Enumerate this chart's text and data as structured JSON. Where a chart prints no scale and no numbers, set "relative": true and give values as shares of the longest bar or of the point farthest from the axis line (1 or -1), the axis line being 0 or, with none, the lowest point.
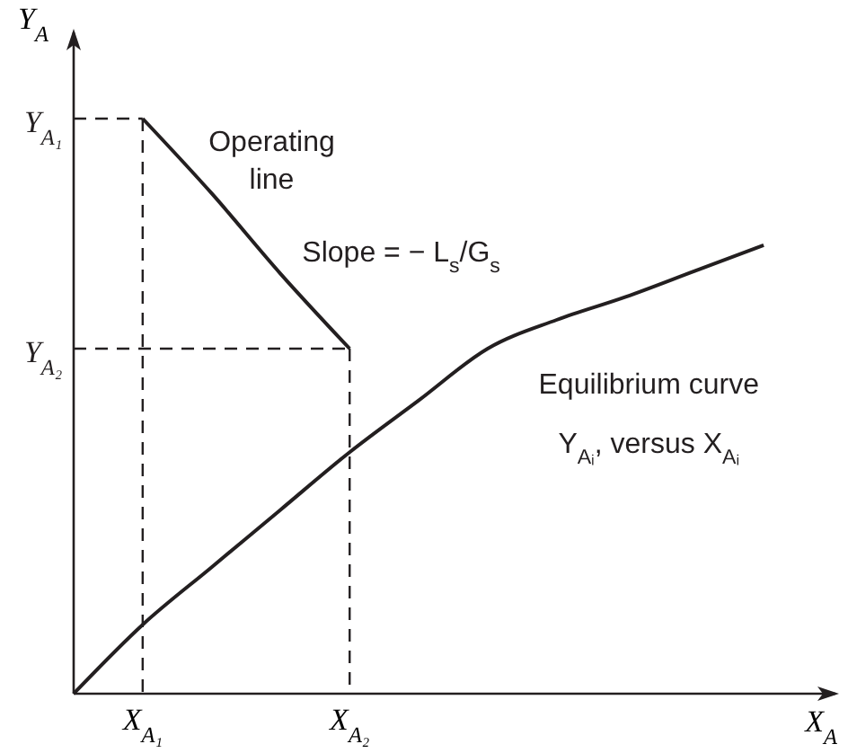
{
  "chart_data": {
    "type": "line",
    "relative": true,
    "xlabel": "X$_{A}$",
    "ylabel": "Y$_{A}$",
    "categories": [
      null,
      "X$_{A₁}$",
      null,
      null,
      "X$_{A₂}$",
      null,
      null,
      null,
      null,
      null,
      null
    ],
    "series": [
      {
        "color": "#231f20",
        "values": [
          null,
          1,
          0.87,
          0.73,
          0.6,
          null,
          null,
          null,
          null,
          null,
          null
        ]
      },
      {
        "color": "#231f20",
        "values": [
          0,
          0.12,
          0.22,
          0.32,
          0.42,
          0.51,
          0.6,
          0.65,
          0.69,
          0.735,
          0.78
        ]
      },
      {
        "color": "#231f20",
        "line_style": "dashed",
        "values": [
          1,
          1,
          null,
          null,
          null,
          null,
          null,
          null,
          null,
          null,
          null
        ]
      },
      {
        "color": "#231f20",
        "line_style": "dashed",
        "values": [
          0.6,
          0.6,
          0.6,
          0.6,
          0.6,
          null,
          null,
          null,
          null,
          null,
          null
        ]
      }
    ],
    "annotations": [
      "Operating\nline",
      "Slope = − L$_{s}$/G$_{s}$",
      "Equilibrium curve",
      "Y$_{Aᵢ}$, versus X$_{Aᵢ}$",
      "Y$_{A₁}$",
      "Y$_{A₂}$"
    ],
    "marker": "none",
    "line_style": "solid"
  }
}
